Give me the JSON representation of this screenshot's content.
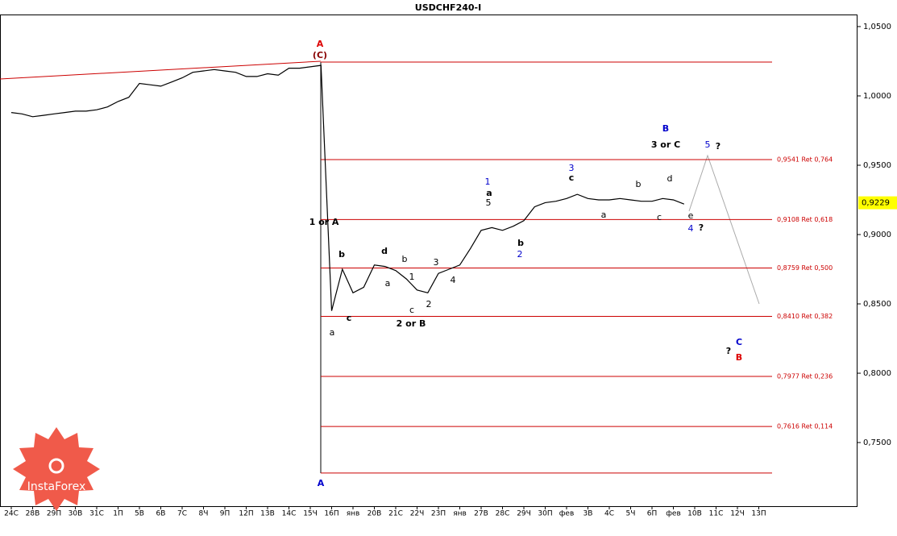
{
  "chart_data": {
    "type": "line",
    "title": "USDCHF240-I",
    "logo": "InstaForex",
    "categories": [
      "24С",
      null,
      "28В",
      null,
      "29П",
      null,
      "30В",
      null,
      "31С",
      null,
      "1П",
      null,
      "5В",
      null,
      "6В",
      null,
      "7С",
      null,
      "8Ч",
      null,
      "9П",
      null,
      "12П",
      null,
      "13В",
      null,
      "14С",
      null,
      "15Ч",
      null,
      "16П",
      null,
      "янв",
      null,
      "20В",
      null,
      "21С",
      null,
      "22Ч",
      null,
      "23П",
      null,
      "янв",
      null,
      "27В",
      null,
      "28С",
      null,
      "29Ч",
      null,
      "30П",
      null,
      "фев",
      null,
      "3В",
      null,
      "4С",
      null,
      "5Ч",
      null,
      "6П",
      null,
      "фев",
      null,
      "10В",
      null,
      "11С",
      null,
      "12Ч",
      null,
      "13П",
      null
    ],
    "series": [
      {
        "name": "USDCHF",
        "color": "#000000",
        "values": [
          0.988,
          0.987,
          0.985,
          0.986,
          0.987,
          0.988,
          0.989,
          0.989,
          0.99,
          0.992,
          0.996,
          0.999,
          1.009,
          1.008,
          1.007,
          1.01,
          1.013,
          1.017,
          1.018,
          1.019,
          1.018,
          1.017,
          1.014,
          1.014,
          1.016,
          1.015,
          1.02,
          1.02,
          1.021,
          1.022,
          0.845,
          0.875,
          0.858,
          0.862,
          0.878,
          0.877,
          0.874,
          0.868,
          0.86,
          0.858,
          0.872,
          0.875,
          0.878,
          0.89,
          0.903,
          0.905,
          0.903,
          0.906,
          0.91,
          0.92,
          0.923,
          0.924,
          0.926,
          0.929,
          0.926,
          0.925,
          0.925,
          0.926,
          0.925,
          0.924,
          0.924,
          0.926,
          0.925,
          0.922,
          null,
          null,
          null,
          null,
          null,
          null,
          null,
          null
        ]
      }
    ],
    "ylim": [
      0.7041,
      1.0587
    ],
    "yticks": [
      {
        "value": 1.05,
        "label": "1,0500"
      },
      {
        "value": 1.0,
        "label": "1,0000"
      },
      {
        "value": 0.95,
        "label": "0,9500"
      },
      {
        "value": 0.9,
        "label": "0,9000"
      },
      {
        "value": 0.85,
        "label": "0,8500"
      },
      {
        "value": 0.8,
        "label": "0,8000"
      },
      {
        "value": 0.75,
        "label": "0,7500"
      }
    ],
    "current_price": {
      "value": 0.9229,
      "label": "0,9229"
    },
    "levels_color": "#cc0000",
    "levels": [
      1.0244,
      {
        "value": 0.9541,
        "label": "0,9541 Ret 0,764"
      },
      {
        "value": 0.9108,
        "label": "0,9108 Ret 0,618"
      },
      {
        "value": 0.8759,
        "label": "0,8759 Ret 0,500"
      },
      {
        "value": 0.841,
        "label": "0,8410 Ret 0,382"
      },
      {
        "value": 0.7977,
        "label": "0,7977 Ret 0,236"
      },
      {
        "value": 0.7616,
        "label": "0,7616 Ret 0,114"
      },
      0.728
    ],
    "trendline": [
      1.0122,
      1.025
    ],
    "annotations": [
      {
        "text": "A",
        "color": "#dd0000"
      },
      {
        "text": "(C)",
        "color": "#880000"
      },
      {
        "text": "1 or A",
        "color": "#000000"
      },
      {
        "text": "a",
        "color": "#000000"
      },
      {
        "text": "b",
        "color": "#000000"
      },
      {
        "text": "c",
        "color": "#000000"
      },
      {
        "text": "d",
        "color": "#000000"
      },
      {
        "text": "a",
        "color": "#000000"
      },
      {
        "text": "b",
        "color": "#000000"
      },
      {
        "text": "1",
        "color": "#000000"
      },
      {
        "text": "c",
        "color": "#000000"
      },
      {
        "text": "2",
        "color": "#000000"
      },
      {
        "text": "2 or B",
        "color": "#000000"
      },
      {
        "text": "3",
        "color": "#000000"
      },
      {
        "text": "4",
        "color": "#000000"
      },
      {
        "text": "1",
        "color": "#0000cc"
      },
      {
        "text": "a",
        "color": "#000000"
      },
      {
        "text": "5",
        "color": "#000000"
      },
      {
        "text": "b",
        "color": "#000000"
      },
      {
        "text": "2",
        "color": "#0000cc"
      },
      {
        "text": "3",
        "color": "#0000cc"
      },
      {
        "text": "c",
        "color": "#000000"
      },
      {
        "text": "b",
        "color": "#000000"
      },
      {
        "text": "d",
        "color": "#000000"
      },
      {
        "text": "a",
        "color": "#000000"
      },
      {
        "text": "c",
        "color": "#000000"
      },
      {
        "text": "e",
        "color": "#000000"
      },
      {
        "text": "4",
        "color": "#0000cc"
      },
      {
        "text": "?",
        "color": "#000000"
      },
      {
        "text": "B",
        "color": "#0000cc"
      },
      {
        "text": "3 or C",
        "color": "#000000"
      },
      {
        "text": "5",
        "color": "#0000cc"
      },
      {
        "text": "?",
        "color": "#000000"
      },
      {
        "text": "C",
        "color": "#0000cc"
      },
      {
        "text": "?",
        "color": "#000000"
      },
      {
        "text": "B",
        "color": "#dd0000"
      },
      {
        "text": "A",
        "color": "#0000cc"
      }
    ]
  }
}
